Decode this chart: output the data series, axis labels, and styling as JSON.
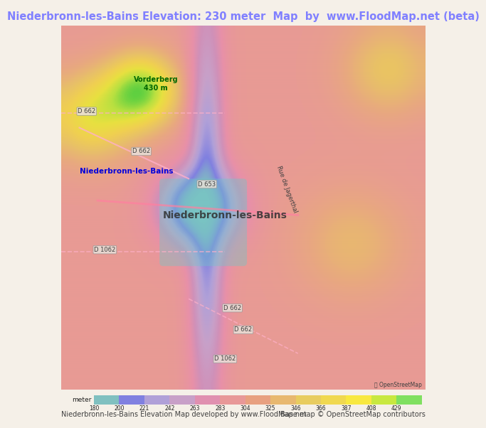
{
  "title": "Niederbronn-les-Bains Elevation: 230 meter  Map  by  www.FloodMap.net (beta)",
  "title_color": "#8080ff",
  "title_fontsize": 10.5,
  "bg_color": "#f5f0e8",
  "map_bg_color": "#d9b3d9",
  "colorbar_values": [
    180,
    200,
    221,
    242,
    263,
    283,
    304,
    325,
    346,
    366,
    387,
    408,
    429
  ],
  "colorbar_colors": [
    "#80c0c0",
    "#8080e0",
    "#b0a0d8",
    "#c8a0c8",
    "#e090b0",
    "#e89898",
    "#e8a080",
    "#e8b870",
    "#e8cc60",
    "#f0d850",
    "#f8e840",
    "#c8e840",
    "#80e060"
  ],
  "footer_left": "Niederbronn-les-Bains Elevation Map developed by www.FloodMap.net",
  "footer_right": "Base map © OpenStreetMap contributors",
  "footer_fontsize": 7,
  "colorbar_label": "meter",
  "fig_width": 5.12,
  "fig_height": 5.82
}
